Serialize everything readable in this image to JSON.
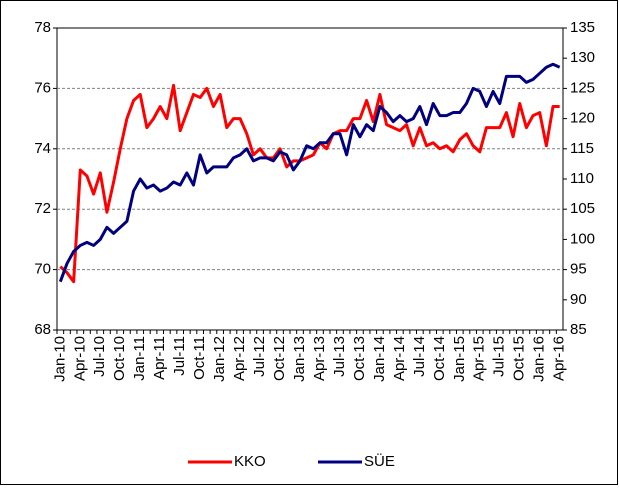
{
  "chart_data": {
    "type": "line",
    "categories": [
      "Jan-10",
      null,
      null,
      "Apr-10",
      null,
      null,
      "Jul-10",
      null,
      null,
      "Oct-10",
      null,
      null,
      "Jan-11",
      null,
      null,
      "Apr-11",
      null,
      null,
      "Jul-11",
      null,
      null,
      "Oct-11",
      null,
      null,
      "Jan-12",
      null,
      null,
      "Apr-12",
      null,
      null,
      "Jul-12",
      null,
      null,
      "Oct-12",
      null,
      null,
      "Jan-13",
      null,
      null,
      "Apr-13",
      null,
      null,
      "Jul-13",
      null,
      null,
      "Oct-13",
      null,
      null,
      "Jan-14",
      null,
      null,
      "Apr-14",
      null,
      null,
      "Jul-14",
      null,
      null,
      "Oct-14",
      null,
      null,
      "Jan-15",
      null,
      null,
      "Apr-15",
      null,
      null,
      "Jul-15",
      null,
      null,
      "Oct-15",
      null,
      null,
      "Jan-16",
      null,
      null,
      "Apr-16"
    ],
    "series": [
      {
        "name": "KKO",
        "color": "#ff0000",
        "values": [
          70.1,
          69.9,
          69.6,
          73.3,
          73.1,
          72.5,
          73.2,
          71.9,
          72.9,
          74.0,
          75.0,
          75.6,
          75.8,
          74.7,
          75.0,
          75.4,
          75.0,
          76.1,
          74.6,
          75.2,
          75.8,
          75.7,
          76.0,
          75.4,
          75.8,
          74.7,
          75.0,
          75.0,
          74.5,
          73.8,
          74.0,
          73.7,
          73.7,
          74.0,
          73.4,
          73.6,
          73.6,
          73.7,
          73.8,
          74.2,
          74.0,
          74.5,
          74.6,
          74.6,
          75.0,
          75.0,
          75.6,
          74.9,
          75.8,
          74.8,
          74.7,
          74.6,
          74.8,
          74.1,
          74.7,
          74.1,
          74.2,
          74.0,
          74.1,
          73.9,
          74.3,
          74.5,
          74.1,
          73.9,
          74.7,
          74.7,
          74.7,
          75.2,
          74.4,
          75.5,
          74.7,
          75.1,
          75.2,
          74.1,
          75.4,
          75.4
        ]
      },
      {
        "name": "SÜE",
        "color": "#000080",
        "axis": "y2",
        "values": [
          93,
          96,
          98,
          99,
          99.5,
          99,
          100,
          102,
          101,
          102,
          103,
          108,
          110,
          108.5,
          109,
          108,
          108.5,
          109.5,
          109,
          111,
          109,
          114,
          111,
          112,
          112,
          112,
          113.5,
          114,
          115,
          113,
          113.5,
          113.5,
          113,
          114.5,
          114,
          111.5,
          113,
          115.5,
          115,
          116,
          116,
          117.5,
          117.5,
          114,
          119,
          117,
          119,
          118,
          122,
          121,
          119.5,
          120.5,
          119.5,
          120,
          122,
          119,
          122.5,
          120.5,
          120.5,
          121,
          121,
          122.5,
          125,
          124.5,
          122,
          124.5,
          122.5,
          127,
          127,
          127,
          126,
          126.5,
          127.5,
          128.5,
          129,
          128.5
        ]
      }
    ],
    "ylim": [
      68,
      78
    ],
    "yticks": [
      68,
      70,
      72,
      74,
      76,
      78
    ],
    "y2lim": [
      85,
      135
    ],
    "y2ticks": [
      85,
      90,
      95,
      100,
      105,
      110,
      115,
      120,
      125,
      130,
      135
    ],
    "grid": true
  }
}
